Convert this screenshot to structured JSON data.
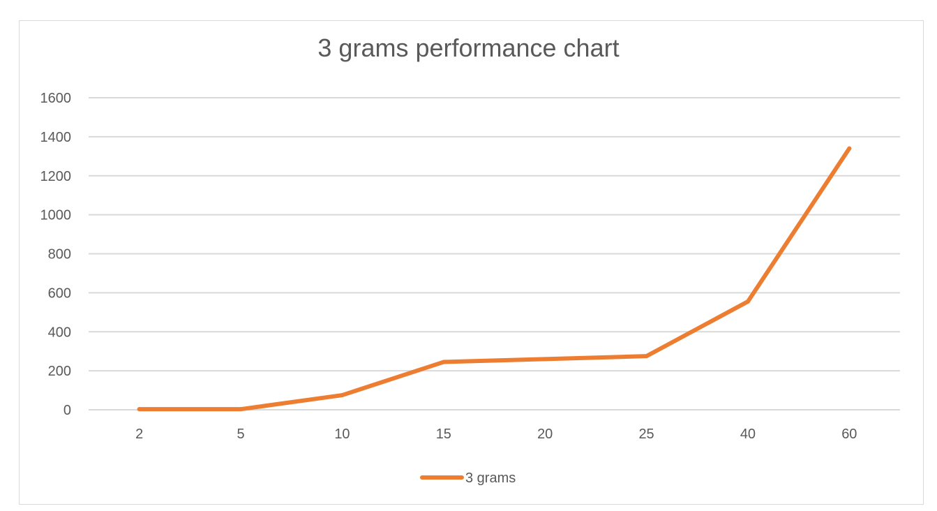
{
  "chart_data": {
    "type": "line",
    "title": "3 grams performance chart",
    "categories": [
      "2",
      "5",
      "10",
      "15",
      "20",
      "25",
      "40",
      "60"
    ],
    "series": [
      {
        "name": "3 grams",
        "values": [
          3,
          3,
          75,
          245,
          260,
          275,
          555,
          1340
        ]
      }
    ],
    "ylim": [
      0,
      1600
    ],
    "yticks": [
      "0",
      "200",
      "400",
      "600",
      "800",
      "1000",
      "1200",
      "1400",
      "1600"
    ],
    "grid": true,
    "legend": "bottom",
    "colors": {
      "series": "#ed7d31",
      "grid": "#d9d9d9",
      "text": "#595959"
    }
  }
}
